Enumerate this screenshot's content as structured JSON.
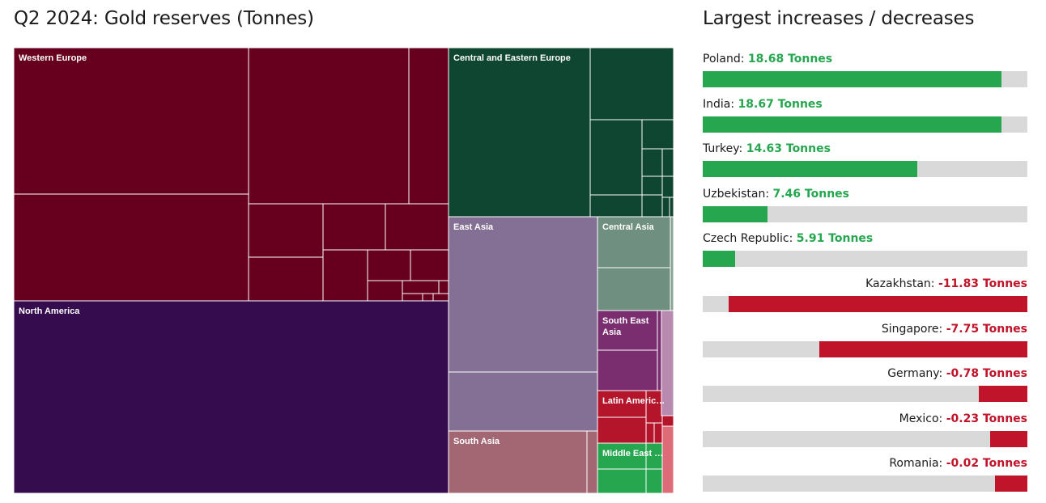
{
  "treemap_title": "Q2 2024: Gold reserves (Tonnes)",
  "bars_title": "Largest increases / decreases",
  "colors": {
    "increase": "#26a64f",
    "decrease": "#c0142a",
    "track": "#d9d9d9"
  },
  "chart_data": [
    {
      "type": "treemap",
      "title": "Q2 2024: Gold reserves (Tonnes)",
      "unit": "Tonnes",
      "regions": [
        {
          "label": "Western Europe",
          "color": "#67001f",
          "share": 0.2925,
          "countries": 19
        },
        {
          "label": "North America",
          "color": "#350d4f",
          "share": 0.2637,
          "countries": 1
        },
        {
          "label": "Central and Eastern Europe",
          "color": "#0e4632",
          "share": 0.1222,
          "countries": 12
        },
        {
          "label": "East Asia",
          "color": "#857095",
          "share": 0.1088,
          "countries": 2
        },
        {
          "label": "Central Asia",
          "color": "#6f8f80",
          "share": 0.03,
          "countries": 3
        },
        {
          "label": "South Asia",
          "color": "#a36774",
          "share": 0.0335,
          "countries": 2
        },
        {
          "label": "South East Asia",
          "color": "#7a2d6f",
          "share": 0.02,
          "countries": 3
        },
        {
          "label": "Latin Americ…",
          "color": "#b5152b",
          "share": 0.014,
          "countries": 6
        },
        {
          "label": "Middle East …",
          "color": "#26a64f",
          "share": 0.0125,
          "countries": 4
        }
      ]
    },
    {
      "type": "bar",
      "title": "Largest increases / decreases",
      "unit": "Tonnes",
      "range": [
        -14.7,
        14.7
      ],
      "categories": [
        "Poland",
        "India",
        "Turkey",
        "Uzbekistan",
        "Czech Republic",
        "Kazakhstan",
        "Singapore",
        "Germany",
        "Mexico",
        "Romania"
      ],
      "values": [
        18.68,
        18.67,
        14.63,
        7.46,
        5.91,
        -11.83,
        -7.75,
        -0.78,
        -0.23,
        -0.02
      ],
      "value_labels": [
        "18.68 Tonnes",
        "18.67 Tonnes",
        "14.63 Tonnes",
        "7.46 Tonnes",
        "5.91 Tonnes",
        "-11.83 Tonnes",
        "-7.75 Tonnes",
        "-0.78 Tonnes",
        "-0.23 Tonnes",
        "-0.02 Tonnes"
      ],
      "fill_fraction": [
        0.92,
        0.92,
        0.66,
        0.2,
        0.1,
        0.92,
        0.64,
        0.15,
        0.115,
        0.1
      ]
    }
  ]
}
